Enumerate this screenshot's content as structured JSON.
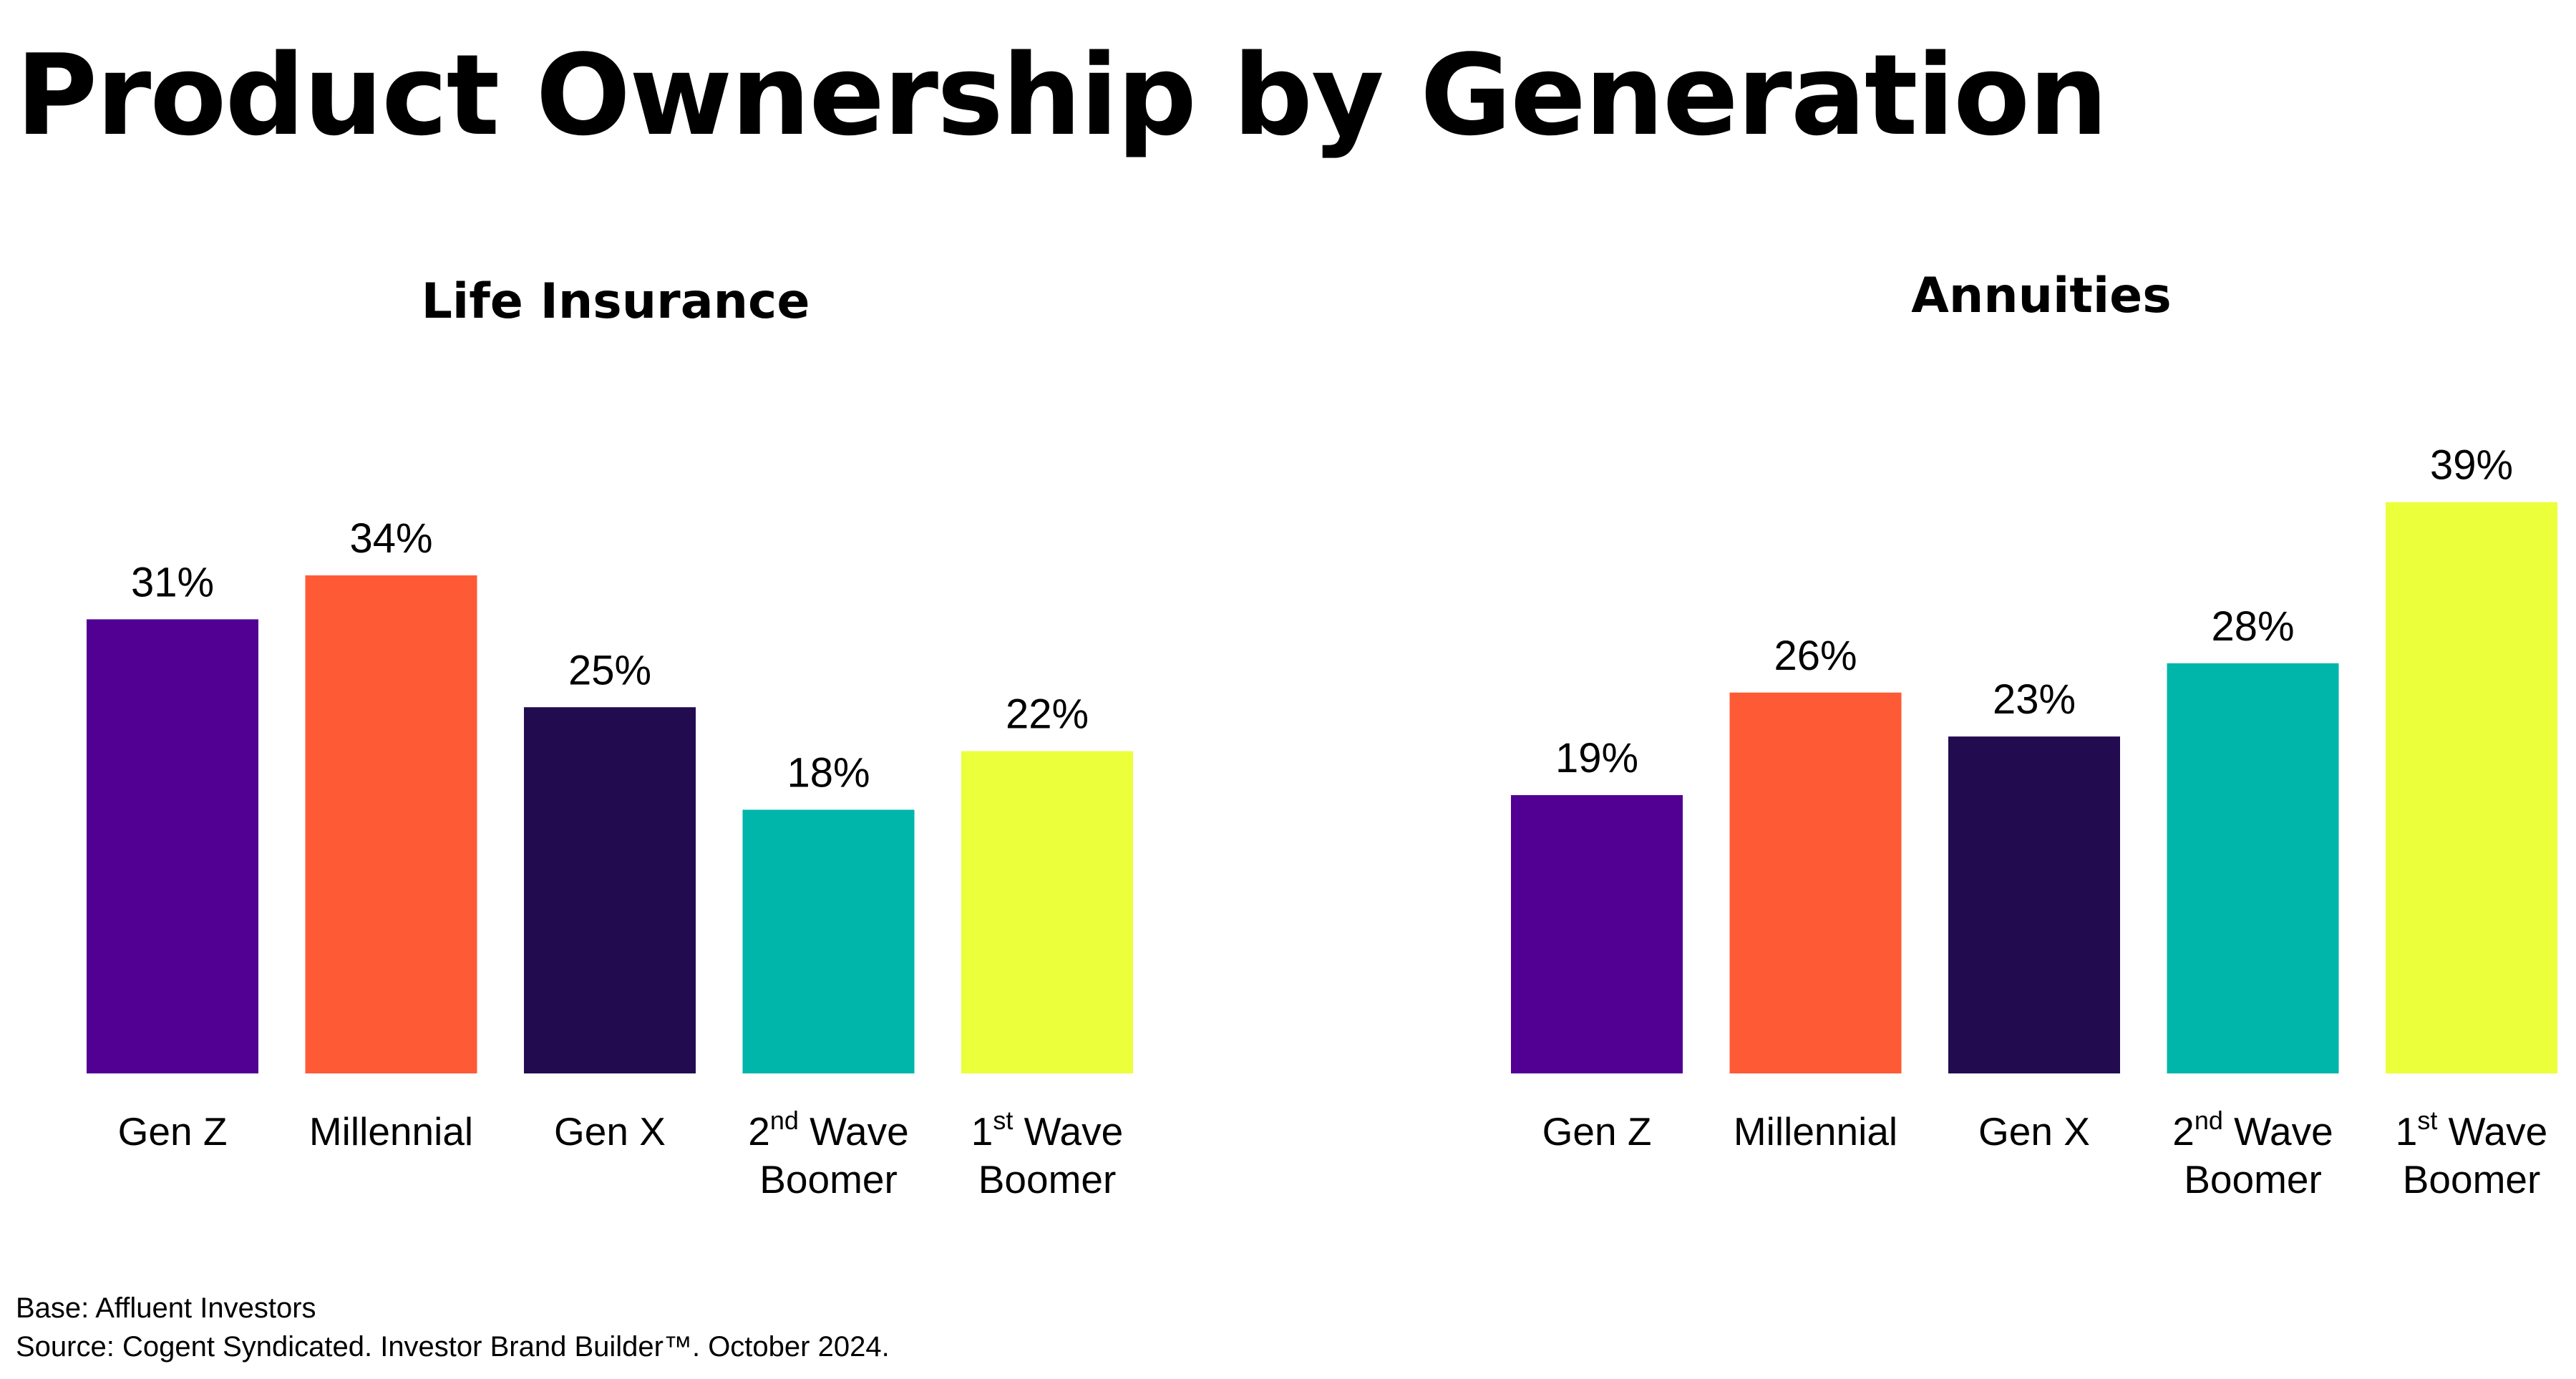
{
  "page": {
    "title": "Product Ownership by Generation",
    "base_note": "Base: Affluent Investors",
    "source_note": "Source: Cogent Syndicated. Investor Brand Builder™. October 2024."
  },
  "chart_data": [
    {
      "type": "bar",
      "title": "Life Insurance",
      "categories": [
        {
          "main": "Gen Z",
          "sup": "",
          "rest": "",
          "line2": ""
        },
        {
          "main": "Millennial",
          "sup": "",
          "rest": "",
          "line2": ""
        },
        {
          "main": "Gen X",
          "sup": "",
          "rest": "",
          "line2": ""
        },
        {
          "main": "2",
          "sup": "nd",
          "rest": " Wave",
          "line2": "Boomer"
        },
        {
          "main": "1",
          "sup": "st",
          "rest": " Wave",
          "line2": "Boomer"
        }
      ],
      "values": [
        31,
        34,
        25,
        18,
        22
      ],
      "value_labels": [
        "31%",
        "34%",
        "25%",
        "18%",
        "22%"
      ],
      "colors": [
        "#520093",
        "#FF5A36",
        "#220B4F",
        "#00B5AA",
        "#EBFF3A"
      ],
      "xlabel": "",
      "ylabel": "",
      "ylim": [
        0,
        40
      ],
      "grid": false,
      "legend": "none"
    },
    {
      "type": "bar",
      "title": "Annuities",
      "categories": [
        {
          "main": "Gen Z",
          "sup": "",
          "rest": "",
          "line2": ""
        },
        {
          "main": "Millennial",
          "sup": "",
          "rest": "",
          "line2": ""
        },
        {
          "main": "Gen X",
          "sup": "",
          "rest": "",
          "line2": ""
        },
        {
          "main": "2",
          "sup": "nd",
          "rest": " Wave",
          "line2": "Boomer"
        },
        {
          "main": "1",
          "sup": "st",
          "rest": " Wave",
          "line2": "Boomer"
        }
      ],
      "values": [
        19,
        26,
        23,
        28,
        39
      ],
      "value_labels": [
        "19%",
        "26%",
        "23%",
        "28%",
        "39%"
      ],
      "colors": [
        "#520093",
        "#FF5A36",
        "#220B4F",
        "#00B5AA",
        "#EBFF3A"
      ],
      "xlabel": "",
      "ylabel": "",
      "ylim": [
        0,
        40
      ],
      "grid": false,
      "legend": "none"
    }
  ]
}
